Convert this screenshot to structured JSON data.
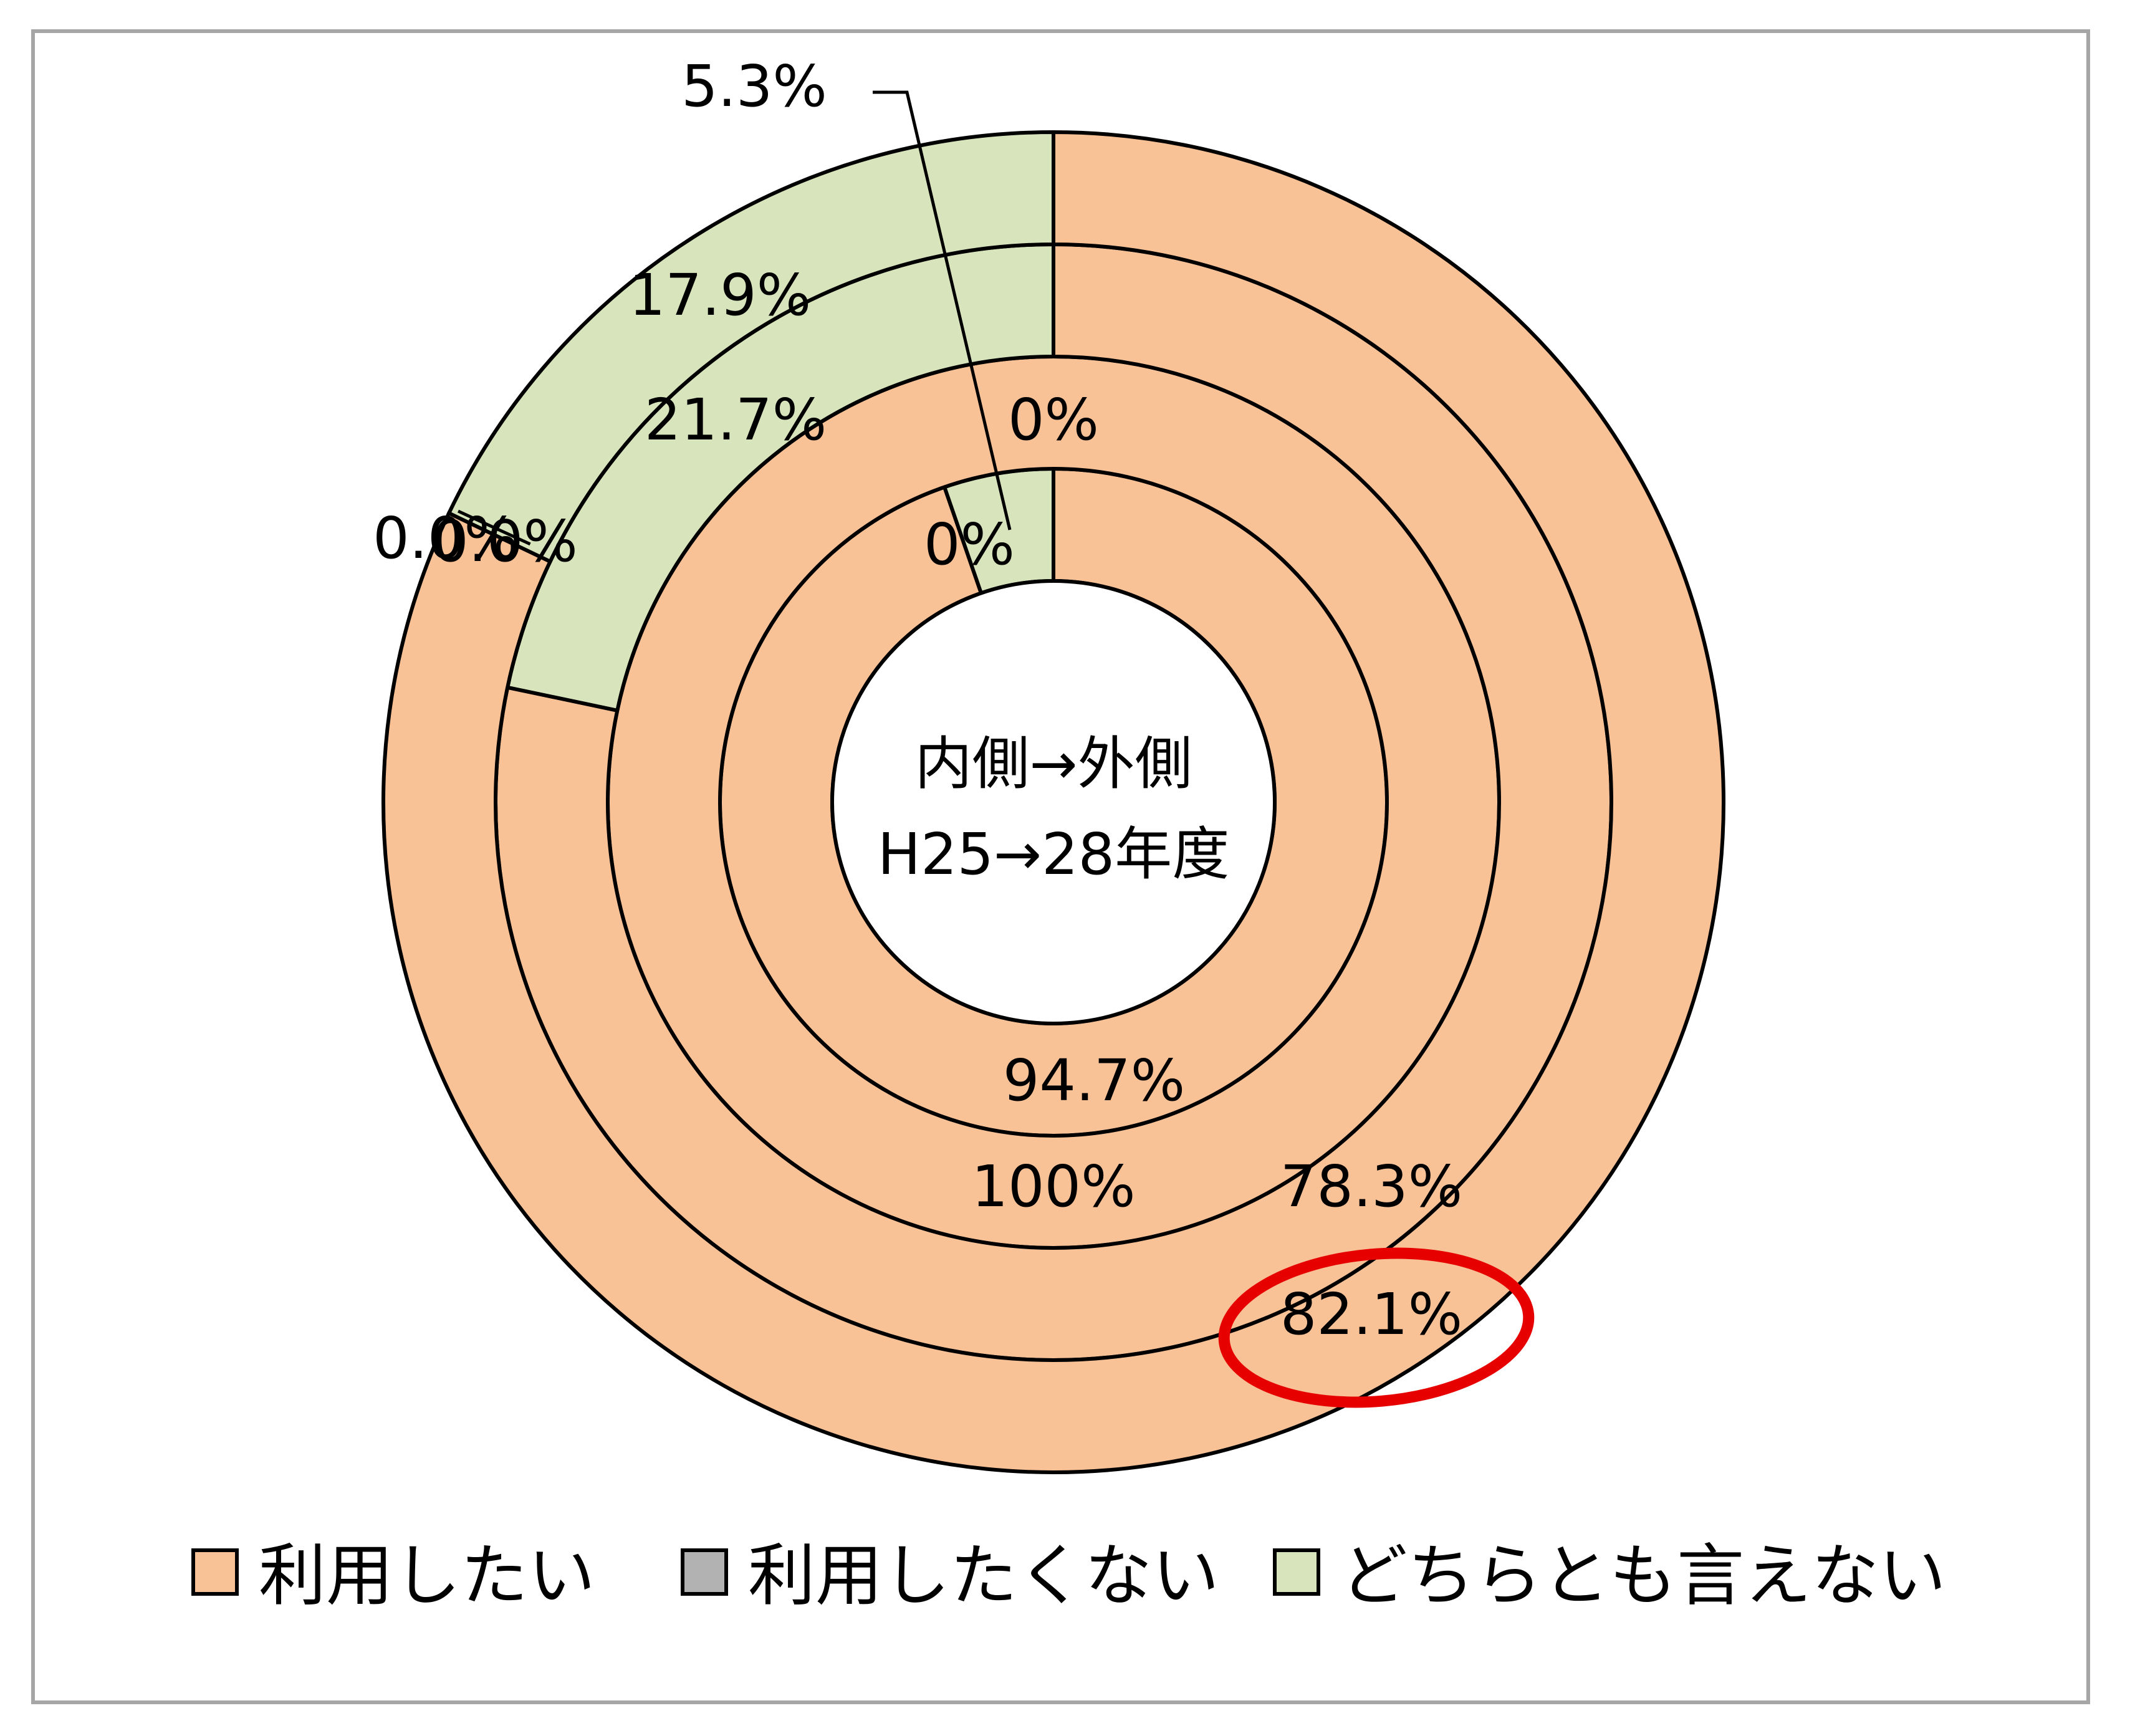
{
  "chart_data": {
    "type": "pie",
    "subtype": "multi-ring-donut",
    "center_text": [
      "内側→外側",
      "H25→28年度"
    ],
    "legend_position": "bottom",
    "categories": [
      "利用したい",
      "利用したくない",
      "どちらとも言えない"
    ],
    "colors": [
      "#F8C196",
      "#B2B2B2",
      "#D8E4BC"
    ],
    "rings": [
      {
        "values": [
          94.7,
          0.0,
          5.3
        ],
        "labels": [
          "94.7%",
          "",
          "5.3%"
        ]
      },
      {
        "values": [
          100.0,
          0.0,
          0.0
        ],
        "labels": [
          "100%",
          "0%",
          "0%"
        ]
      },
      {
        "values": [
          78.3,
          0.0,
          21.7
        ],
        "labels": [
          "78.3%",
          "0.0%",
          "21.7%"
        ]
      },
      {
        "values": [
          82.1,
          0.0,
          17.9
        ],
        "labels": [
          "82.1%",
          "0.0%",
          "17.9%"
        ]
      }
    ],
    "highlight": {
      "ring": 3,
      "label": "82.1%",
      "color": "#E60000"
    }
  }
}
